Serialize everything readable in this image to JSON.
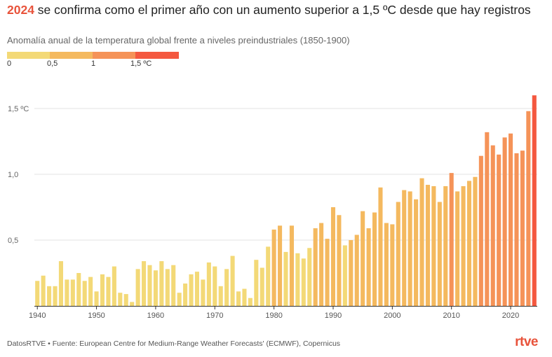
{
  "header": {
    "title_highlight": "2024",
    "title_rest": " se confirma como el primer año con un aumento superior a 1,5 ºC desde que hay registros",
    "subtitle": "Anomalía anual de la temperatura global frente a niveles preindustriales (1850-1900)"
  },
  "legend": {
    "labels": [
      "0",
      "0,5",
      "1",
      "1,5 ºC"
    ],
    "colors": [
      "#f3d977",
      "#f4b95f",
      "#f59358",
      "#f4583f"
    ]
  },
  "footer": {
    "source": "DatosRTVE • Fuente: European Centre for Medium-Range Weather Forecasts' (ECMWF), Copernicus",
    "logo": "rtve"
  },
  "chart_data": {
    "type": "bar",
    "title": "2024 se confirma como el primer año con un aumento superior a 1,5 ºC desde que hay registros",
    "subtitle": "Anomalía anual de la temperatura global frente a niveles preindustriales (1850-1900)",
    "xlabel": "",
    "ylabel": "",
    "ylim": [
      0,
      1.6
    ],
    "y_ticks": [
      0.5,
      1.0,
      1.5
    ],
    "y_tick_labels": [
      "0,5",
      "1,0",
      "1,5 ºC"
    ],
    "x_ticks": [
      1940,
      1950,
      1960,
      1970,
      1980,
      1990,
      2000,
      2010,
      2020
    ],
    "color_scale": {
      "thresholds": [
        0.5,
        1.0,
        1.5
      ],
      "colors": [
        "#f3d977",
        "#f4b95f",
        "#f59358",
        "#f4583f"
      ]
    },
    "grid": true,
    "categories": [
      1940,
      1941,
      1942,
      1943,
      1944,
      1945,
      1946,
      1947,
      1948,
      1949,
      1950,
      1951,
      1952,
      1953,
      1954,
      1955,
      1956,
      1957,
      1958,
      1959,
      1960,
      1961,
      1962,
      1963,
      1964,
      1965,
      1966,
      1967,
      1968,
      1969,
      1970,
      1971,
      1972,
      1973,
      1974,
      1975,
      1976,
      1977,
      1978,
      1979,
      1980,
      1981,
      1982,
      1983,
      1984,
      1985,
      1986,
      1987,
      1988,
      1989,
      1990,
      1991,
      1992,
      1993,
      1994,
      1995,
      1996,
      1997,
      1998,
      1999,
      2000,
      2001,
      2002,
      2003,
      2004,
      2005,
      2006,
      2007,
      2008,
      2009,
      2010,
      2011,
      2012,
      2013,
      2014,
      2015,
      2016,
      2017,
      2018,
      2019,
      2020,
      2021,
      2022,
      2023,
      2024
    ],
    "values": [
      0.19,
      0.23,
      0.15,
      0.15,
      0.34,
      0.2,
      0.2,
      0.25,
      0.19,
      0.22,
      0.11,
      0.24,
      0.22,
      0.3,
      0.1,
      0.09,
      0.03,
      0.28,
      0.34,
      0.31,
      0.27,
      0.34,
      0.28,
      0.31,
      0.1,
      0.17,
      0.24,
      0.26,
      0.2,
      0.33,
      0.3,
      0.15,
      0.28,
      0.38,
      0.11,
      0.13,
      0.06,
      0.35,
      0.29,
      0.45,
      0.58,
      0.61,
      0.41,
      0.61,
      0.4,
      0.36,
      0.44,
      0.59,
      0.63,
      0.51,
      0.75,
      0.69,
      0.46,
      0.5,
      0.54,
      0.72,
      0.59,
      0.71,
      0.9,
      0.63,
      0.62,
      0.79,
      0.88,
      0.87,
      0.81,
      0.97,
      0.92,
      0.91,
      0.79,
      0.91,
      1.01,
      0.87,
      0.91,
      0.95,
      0.98,
      1.14,
      1.32,
      1.22,
      1.15,
      1.28,
      1.31,
      1.16,
      1.18,
      1.48,
      1.6
    ]
  }
}
